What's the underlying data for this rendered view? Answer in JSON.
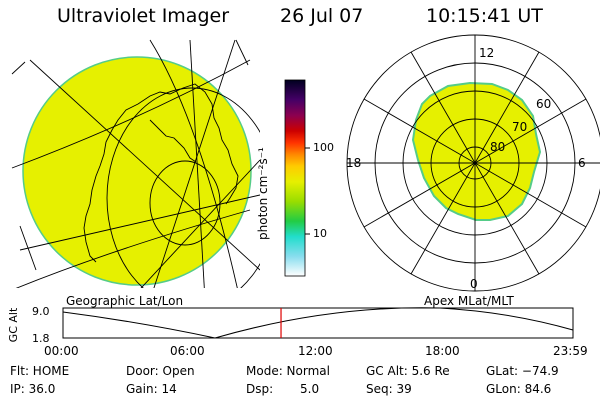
{
  "header": {
    "title": "Ultraviolet Imager",
    "date": "26 Jul 07",
    "time": "10:15:41 UT"
  },
  "colors": {
    "auroral_fill": "#e6f000",
    "edge": "#55cc88",
    "time_marker": "#dd0000"
  },
  "colorbar": {
    "unit_label": "photon cm⁻²s⁻¹",
    "ticks": [
      "100",
      "10"
    ],
    "gradient": [
      "#000020",
      "#440066",
      "#8b0050",
      "#cc0000",
      "#ff3300",
      "#ff8800",
      "#ffcc00",
      "#e6f000",
      "#99dd00",
      "#22cc44",
      "#22ddcc",
      "#88ddee",
      "#ffffff"
    ]
  },
  "left_panel": {
    "caption": "Geographic Lat/Lon"
  },
  "right_panel": {
    "caption": "Apex MLat/MLT",
    "mlt_labels": {
      "top": "12",
      "left": "18",
      "right": "6",
      "bottom": "0"
    },
    "lat_labels": [
      "60",
      "70",
      "80"
    ]
  },
  "altitude_plot": {
    "axis_label": "GC Alt",
    "y_ticks": [
      "9.0",
      "1.8"
    ],
    "x_ticks": [
      "00:00",
      "06:00",
      "12:00",
      "18:00",
      "23:59"
    ],
    "current_time_fraction": 0.4275
  },
  "info": {
    "flt": "Flt: HOME",
    "door": "Door: Open",
    "mode": "Mode: Normal",
    "gcalt": "GC Alt: 5.6 Re",
    "glat": "GLat: −74.9",
    "ip": "IP: 36.0",
    "gain": "Gain: 14",
    "dsp_label": "Dsp:",
    "dsp_value": "5.0",
    "seq": "Seq: 39",
    "glon": "GLon: 84.6"
  }
}
